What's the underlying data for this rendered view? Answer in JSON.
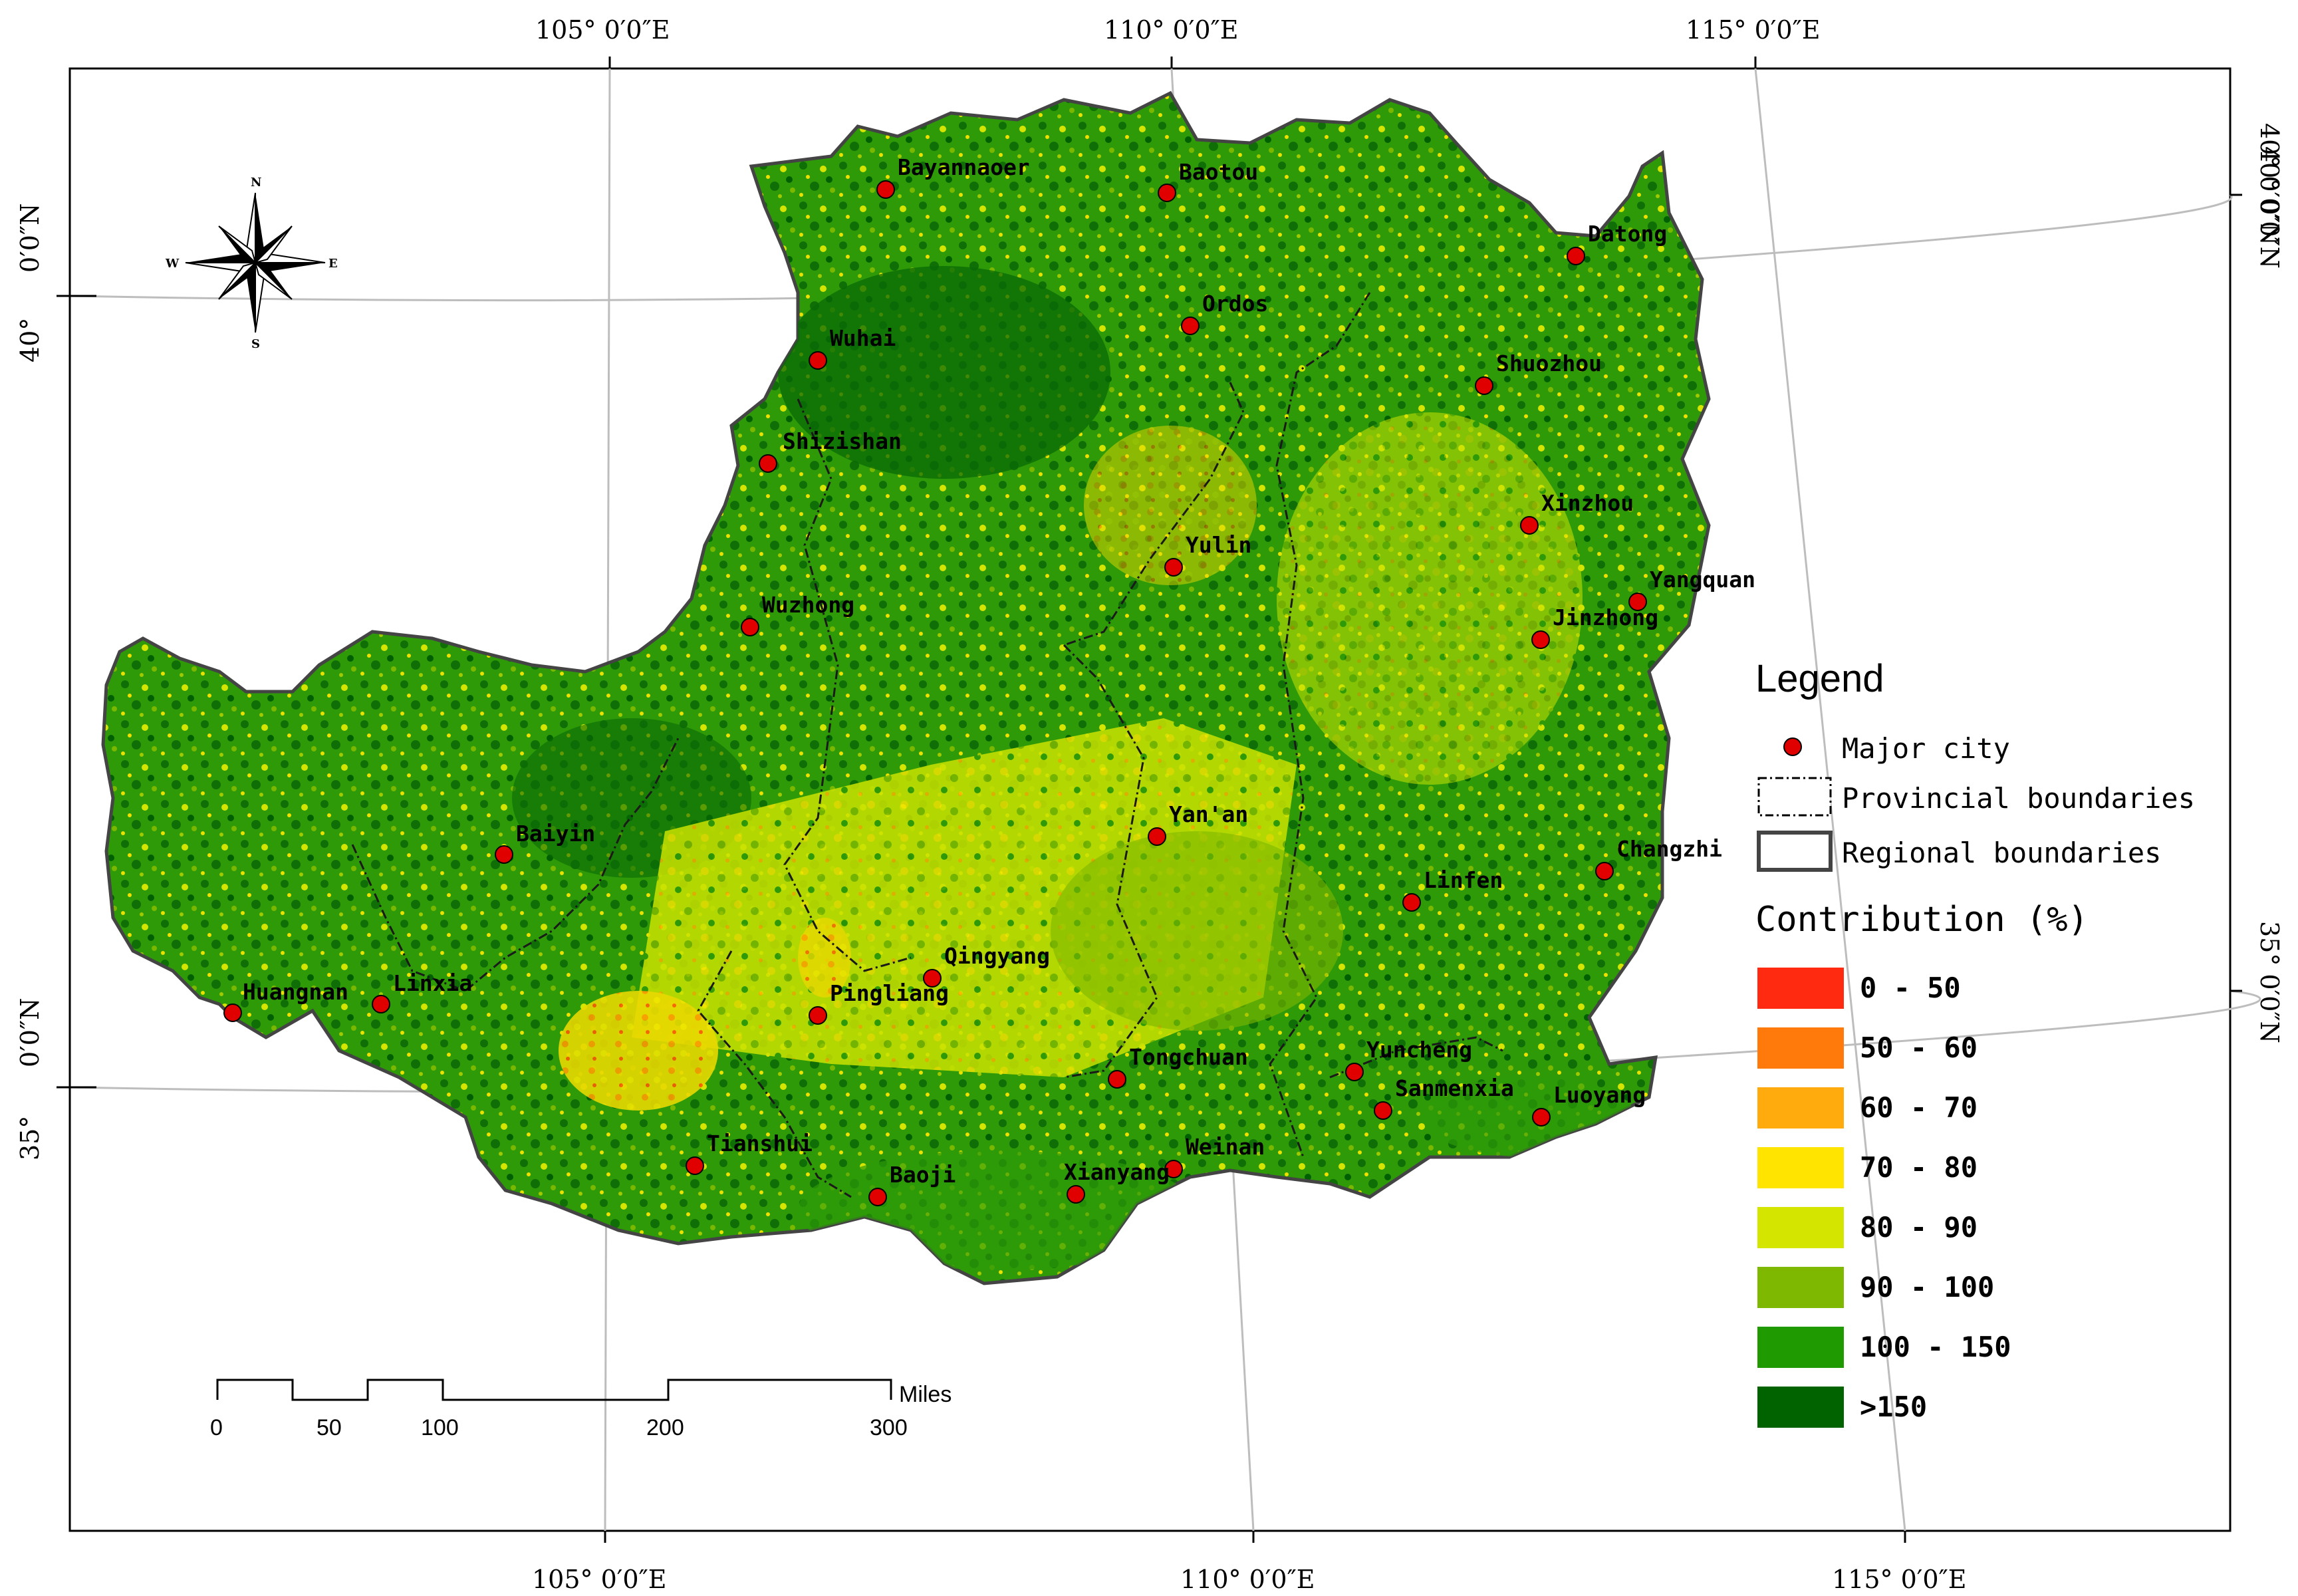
{
  "map": {
    "graticule_labels": {
      "top": [
        "105° 0′0″E",
        "110° 0′0″E",
        "115° 0′0″E"
      ],
      "bottom": [
        "105° 0′0″E",
        "110° 0′0″E",
        "115° 0′0″E"
      ],
      "left": [
        "40°",
        "35°"
      ],
      "left_extra": [
        "0′0″N",
        "0′0″N"
      ],
      "right": [
        "40° 0′0″N",
        "40° 0′0″N",
        "35° 0′0″N"
      ]
    },
    "cities": [
      {
        "name": "Bayannaoer"
      },
      {
        "name": "Baotou"
      },
      {
        "name": "Datong"
      },
      {
        "name": "Ordos"
      },
      {
        "name": "Wuhai"
      },
      {
        "name": "Shuozhou"
      },
      {
        "name": "Shizishan"
      },
      {
        "name": "Xinzhou"
      },
      {
        "name": "Yulin"
      },
      {
        "name": "Yangquan"
      },
      {
        "name": "Wuzhong"
      },
      {
        "name": "Jinzhong"
      },
      {
        "name": "Baiyin"
      },
      {
        "name": "Yan'an"
      },
      {
        "name": "Changzhi"
      },
      {
        "name": "Linfen"
      },
      {
        "name": "Qingyang"
      },
      {
        "name": "Huangnan"
      },
      {
        "name": "Linxia"
      },
      {
        "name": "Pingliang"
      },
      {
        "name": "Tongchuan"
      },
      {
        "name": "Yuncheng"
      },
      {
        "name": "Sanmenxia"
      },
      {
        "name": "Luoyang"
      },
      {
        "name": "Tianshui"
      },
      {
        "name": "Weinan"
      },
      {
        "name": "Baoji"
      },
      {
        "name": "Xianyang"
      }
    ]
  },
  "legend": {
    "title": "Legend",
    "major_city": "Major city",
    "provincial": "Provincial boundaries",
    "regional": "Regional boundaries",
    "contribution_title": "Contribution (%)",
    "classes": [
      {
        "label": "0 - 50",
        "color": "#ff2a0f"
      },
      {
        "label": "50 - 60",
        "color": "#ff7a0a"
      },
      {
        "label": "60 - 70",
        "color": "#ffab0d"
      },
      {
        "label": "70 - 80",
        "color": "#ffe400"
      },
      {
        "label": "80 - 90",
        "color": "#d4e600"
      },
      {
        "label": "90 - 100",
        "color": "#7fb800"
      },
      {
        "label": "100 - 150",
        "color": "#1f9a00"
      },
      {
        "label": ">150",
        "color": "#006300"
      }
    ]
  },
  "scalebar": {
    "unit": "Miles",
    "ticks": [
      "0",
      "50",
      "100",
      "200",
      "300"
    ]
  },
  "north_arrow": {
    "n": "N",
    "s": "S",
    "e": "E",
    "w": "W"
  },
  "colors": {
    "city_marker": "#e00000",
    "frame": "#000000",
    "graticule": "#bdbdbd"
  }
}
